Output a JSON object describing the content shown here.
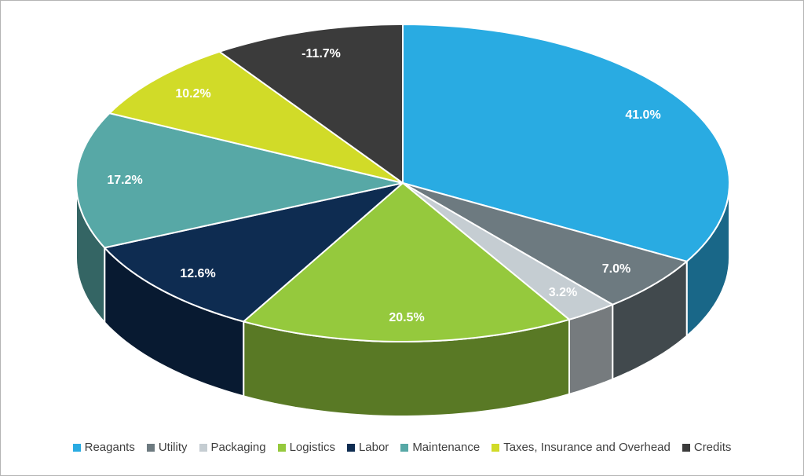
{
  "chart_data": {
    "type": "pie",
    "style": "3d-pie",
    "title": "",
    "legend_position": "bottom",
    "label_format": "percent",
    "label_color": "#FFFFFF",
    "slices": [
      {
        "label": "Reagants",
        "value": 41.0,
        "display": "41.0%",
        "color": "#29ABE2"
      },
      {
        "label": "Utility",
        "value": 7.0,
        "display": "7.0%",
        "color": "#6D7A80"
      },
      {
        "label": "Packaging",
        "value": 3.2,
        "display": "3.2%",
        "color": "#C5CDD2"
      },
      {
        "label": "Logistics",
        "value": 20.5,
        "display": "20.5%",
        "color": "#95C93D"
      },
      {
        "label": "Labor",
        "value": 12.6,
        "display": "12.6%",
        "color": "#0E2C51"
      },
      {
        "label": "Maintenance",
        "value": 17.2,
        "display": "17.2%",
        "color": "#57A8A6"
      },
      {
        "label": "Taxes, Insurance and Overhead",
        "value": 10.2,
        "display": "10.2%",
        "color": "#D1DB28"
      },
      {
        "label": "Credits",
        "value": -11.7,
        "display": "-11.7%",
        "color": "#3B3B3B"
      }
    ]
  },
  "frame": {
    "background": "#FFFFFF",
    "border_color": "#B4B4B4"
  }
}
